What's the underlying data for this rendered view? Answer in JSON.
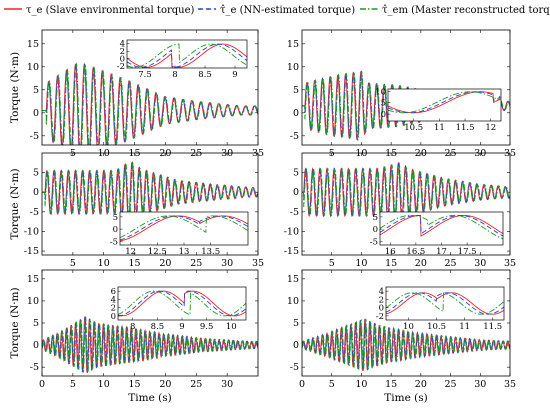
{
  "legend": {
    "items": [
      {
        "label": "τ_e (Slave environmental torque)",
        "color": "#e8262b",
        "dash": "solid"
      },
      {
        "label": "τ̂_e (NN-estimated torque)",
        "color": "#2a3fd9",
        "dash": "dash"
      },
      {
        "label": "τ̂_em (Master reconstructed torque)",
        "color": "#1a9a24",
        "dash": "dashdot"
      }
    ]
  },
  "chart_data": [
    {
      "type": "line",
      "panel": "top-left",
      "xlabel": "",
      "ylabel": "Torque (N·m)",
      "xlim": [
        0,
        35
      ],
      "ylim": [
        -7,
        18
      ],
      "xticks": [
        "5",
        "10",
        "15",
        "20",
        "25",
        "30",
        "35"
      ],
      "yticks": [
        "-5",
        "0",
        "5",
        "10",
        "15"
      ],
      "signal": {
        "start": 0.7,
        "period": 1.45,
        "offset": 0.5,
        "peaks": [
          [
            0.7,
            6
          ],
          [
            6.0,
            10.5
          ],
          [
            9,
            9
          ],
          [
            14,
            6.5
          ],
          [
            20,
            3
          ],
          [
            25,
            2
          ],
          [
            32,
            1
          ]
        ],
        "settle": 35
      },
      "inset": {
        "xlim": [
          7.2,
          9.2
        ],
        "ylim": [
          -2.5,
          5
        ],
        "xticks": [
          "7.5",
          "8",
          "8.5",
          "9"
        ],
        "yticks": [
          "-2",
          "0",
          "2",
          "4"
        ],
        "period": 1.5,
        "amp": 3.1,
        "offset": 0.8,
        "jump": 7.95,
        "phase": 7.9
      }
    },
    {
      "type": "line",
      "panel": "top-right",
      "xlabel": "",
      "ylabel": "",
      "xlim": [
        0,
        35
      ],
      "ylim": [
        -7,
        18
      ],
      "xticks": [
        "5",
        "10",
        "15",
        "20",
        "25",
        "30",
        "35"
      ],
      "yticks": [
        "-5",
        "0",
        "5",
        "10",
        "15"
      ],
      "signal": {
        "start": 0.5,
        "period": 1.3,
        "offset": 1.5,
        "peaks": [
          [
            0.5,
            5
          ],
          [
            5,
            6.5
          ],
          [
            10,
            7.5
          ],
          [
            11,
            5
          ],
          [
            16,
            4.5
          ],
          [
            22,
            3
          ],
          [
            28,
            2
          ],
          [
            34,
            1
          ]
        ],
        "settle": 35
      },
      "inset": {
        "xlim": [
          10,
          12.2
        ],
        "ylim": [
          -3,
          11
        ],
        "xticks": [
          "10.5",
          "11",
          "11.5",
          "12"
        ],
        "yticks": [
          "0",
          "5",
          "10"
        ],
        "period": 2.6,
        "amp": 4.6,
        "offset": 5.2,
        "jump": 12.05,
        "phase": 11.15
      }
    },
    {
      "type": "line",
      "panel": "middle-left",
      "xlabel": "",
      "ylabel": "Torque (N·m)",
      "xlim": [
        0,
        35
      ],
      "ylim": [
        -16,
        10
      ],
      "xticks": [
        "5",
        "10",
        "15",
        "20",
        "25",
        "30",
        "35"
      ],
      "yticks": [
        "-15",
        "-10",
        "-5",
        "0",
        "5"
      ],
      "signal": {
        "start": 0.5,
        "period": 1.15,
        "offset": 0,
        "peaks": [
          [
            0.5,
            5.5
          ],
          [
            12,
            5.5
          ],
          [
            14.3,
            8
          ],
          [
            16,
            6
          ],
          [
            22,
            3
          ],
          [
            28,
            2
          ],
          [
            34,
            1.2
          ]
        ],
        "settle": 35
      },
      "inset": {
        "xlim": [
          11.8,
          14.2
        ],
        "ylim": [
          -6.5,
          7
        ],
        "xticks": [
          "12",
          "12.5",
          "13",
          "13.5"
        ],
        "yticks": [
          "-5",
          "0",
          "5"
        ],
        "period": 2.4,
        "amp": 5.2,
        "offset": 0.2,
        "jump": 13.3,
        "phase": 12.3
      }
    },
    {
      "type": "line",
      "panel": "middle-right",
      "xlabel": "",
      "ylabel": "",
      "xlim": [
        0,
        35
      ],
      "ylim": [
        -16,
        10
      ],
      "xticks": [
        "5",
        "10",
        "15",
        "20",
        "25",
        "30",
        "35"
      ],
      "yticks": [
        "-15",
        "-10",
        "-5",
        "0",
        "5"
      ],
      "signal": {
        "start": 0.3,
        "period": 1.2,
        "offset": 0,
        "peaks": [
          [
            0.3,
            6
          ],
          [
            13,
            6
          ],
          [
            16.5,
            7.5
          ],
          [
            18,
            6
          ],
          [
            24,
            3.5
          ],
          [
            30,
            2
          ],
          [
            34,
            1.5
          ]
        ],
        "settle": 35
      },
      "inset": {
        "xlim": [
          15.8,
          18.2
        ],
        "ylim": [
          -6.5,
          7
        ],
        "xticks": [
          "16",
          "16.5",
          "17",
          "17.5"
        ],
        "yticks": [
          "-5",
          "0",
          "5"
        ],
        "period": 2.4,
        "amp": 5.3,
        "offset": 0.3,
        "jump": 16.6,
        "phase": 16.0
      }
    },
    {
      "type": "line",
      "panel": "bottom-left",
      "xlabel": "Time (s)",
      "ylabel": "Torque (N·m)",
      "xlim": [
        0,
        35
      ],
      "ylim": [
        -7,
        17
      ],
      "xticks": [
        "0",
        "5",
        "10",
        "15",
        "20",
        "25",
        "30"
      ],
      "yticks": [
        "-5",
        "0",
        "5",
        "10",
        "15"
      ],
      "signal": {
        "start": 0.0,
        "period": 0.75,
        "offset": 0,
        "peaks": [
          [
            0,
            1
          ],
          [
            3,
            3
          ],
          [
            7,
            6.5
          ],
          [
            9,
            5
          ],
          [
            14,
            4
          ],
          [
            20,
            2.5
          ],
          [
            26,
            1.5
          ],
          [
            34,
            0.8
          ]
        ],
        "settle": 35
      },
      "inset": {
        "xlim": [
          7.7,
          10.3
        ],
        "ylim": [
          -1,
          7
        ],
        "xticks": [
          "8",
          "8.5",
          "9",
          "9.5",
          "10"
        ],
        "yticks": [
          "0",
          "2",
          "4",
          "6"
        ],
        "period": 1.7,
        "amp": 3.0,
        "offset": 3.0,
        "jump": 9.05,
        "phase": 8.2
      }
    },
    {
      "type": "line",
      "panel": "bottom-right",
      "xlabel": "Time (s)",
      "ylabel": "",
      "xlim": [
        0,
        35
      ],
      "ylim": [
        -7,
        17
      ],
      "xticks": [
        "0",
        "5",
        "10",
        "15",
        "20",
        "25",
        "30",
        "35"
      ],
      "yticks": [
        "-5",
        "0",
        "5",
        "10",
        "15"
      ],
      "signal": {
        "start": 0.0,
        "period": 0.8,
        "offset": 0,
        "peaks": [
          [
            0,
            0.8
          ],
          [
            5,
            3
          ],
          [
            10.5,
            6
          ],
          [
            13,
            4.5
          ],
          [
            18,
            3
          ],
          [
            24,
            2
          ],
          [
            30,
            1.2
          ],
          [
            34,
            0.9
          ]
        ],
        "settle": 35
      },
      "inset": {
        "xlim": [
          9.6,
          11.7
        ],
        "ylim": [
          -3,
          5
        ],
        "xticks": [
          "10",
          "10.5",
          "11",
          "11.5"
        ],
        "yticks": [
          "-2",
          "0",
          "2",
          "4"
        ],
        "period": 1.45,
        "amp": 2.6,
        "offset": 1.0,
        "jump": 10.5,
        "phase": 9.9
      }
    }
  ]
}
